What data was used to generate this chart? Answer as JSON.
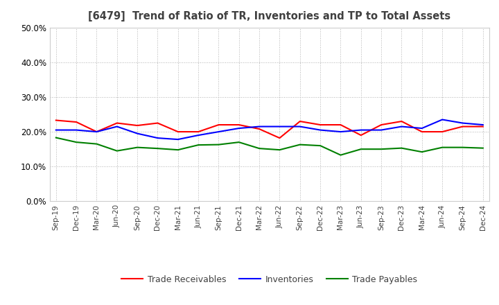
{
  "title": "[6479]  Trend of Ratio of TR, Inventories and TP to Total Assets",
  "x_labels": [
    "Sep-19",
    "Dec-19",
    "Mar-20",
    "Jun-20",
    "Sep-20",
    "Dec-20",
    "Mar-21",
    "Jun-21",
    "Sep-21",
    "Dec-21",
    "Mar-22",
    "Jun-22",
    "Sep-22",
    "Dec-22",
    "Mar-23",
    "Jun-23",
    "Sep-23",
    "Dec-23",
    "Mar-24",
    "Jun-24",
    "Sep-24",
    "Dec-24"
  ],
  "trade_receivables": [
    0.233,
    0.228,
    0.2,
    0.225,
    0.218,
    0.225,
    0.2,
    0.2,
    0.22,
    0.22,
    0.208,
    0.182,
    0.23,
    0.22,
    0.22,
    0.19,
    0.22,
    0.23,
    0.2,
    0.2,
    0.215,
    0.215
  ],
  "inventories": [
    0.205,
    0.205,
    0.2,
    0.215,
    0.195,
    0.182,
    0.178,
    0.19,
    0.2,
    0.21,
    0.215,
    0.215,
    0.215,
    0.205,
    0.2,
    0.205,
    0.205,
    0.215,
    0.21,
    0.235,
    0.225,
    0.22
  ],
  "trade_payables": [
    0.183,
    0.17,
    0.165,
    0.145,
    0.155,
    0.152,
    0.148,
    0.162,
    0.163,
    0.17,
    0.152,
    0.148,
    0.163,
    0.16,
    0.133,
    0.15,
    0.15,
    0.153,
    0.142,
    0.155,
    0.155,
    0.153
  ],
  "tr_color": "#ff0000",
  "inv_color": "#0000ff",
  "tp_color": "#008000",
  "ylim": [
    0.0,
    0.5
  ],
  "yticks": [
    0.0,
    0.1,
    0.2,
    0.3,
    0.4,
    0.5
  ],
  "legend_labels": [
    "Trade Receivables",
    "Inventories",
    "Trade Payables"
  ],
  "title_color": "#404040",
  "bg_color": "#ffffff",
  "grid_color": "#aaaaaa",
  "tick_color": "#404040"
}
